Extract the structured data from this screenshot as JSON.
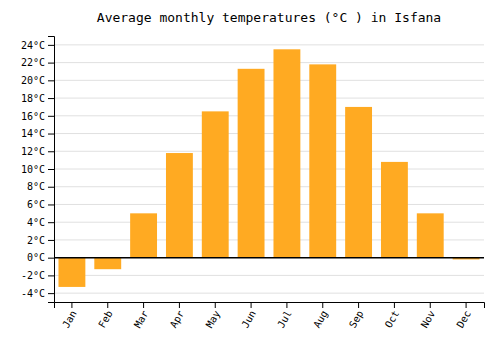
{
  "chart_data": {
    "type": "bar",
    "title": "Average monthly temperatures (°C ) in Isfana",
    "categories": [
      "Jan",
      "Feb",
      "Mar",
      "Apr",
      "May",
      "Jun",
      "Jul",
      "Aug",
      "Sep",
      "Oct",
      "Nov",
      "Dec"
    ],
    "values": [
      -3.3,
      -1.3,
      5.0,
      11.8,
      16.5,
      21.3,
      23.5,
      21.8,
      17.0,
      10.8,
      5.0,
      -0.2
    ],
    "color": "#FFAA22",
    "ylim": [
      -5,
      25
    ],
    "yticks": [
      {
        "value": -4,
        "label": "-4°C"
      },
      {
        "value": -2,
        "label": "-2°C"
      },
      {
        "value": 0,
        "label": "0°C"
      },
      {
        "value": 2,
        "label": "2°C"
      },
      {
        "value": 4,
        "label": "4°C"
      },
      {
        "value": 6,
        "label": "6°C"
      },
      {
        "value": 8,
        "label": "8°C"
      },
      {
        "value": 10,
        "label": "10°C"
      },
      {
        "value": 12,
        "label": "12°C"
      },
      {
        "value": 14,
        "label": "14°C"
      },
      {
        "value": 16,
        "label": "16°C"
      },
      {
        "value": 18,
        "label": "18°C"
      },
      {
        "value": 20,
        "label": "20°C"
      },
      {
        "value": 22,
        "label": "22°C"
      },
      {
        "value": 24,
        "label": "24°C"
      }
    ],
    "grid": true
  }
}
